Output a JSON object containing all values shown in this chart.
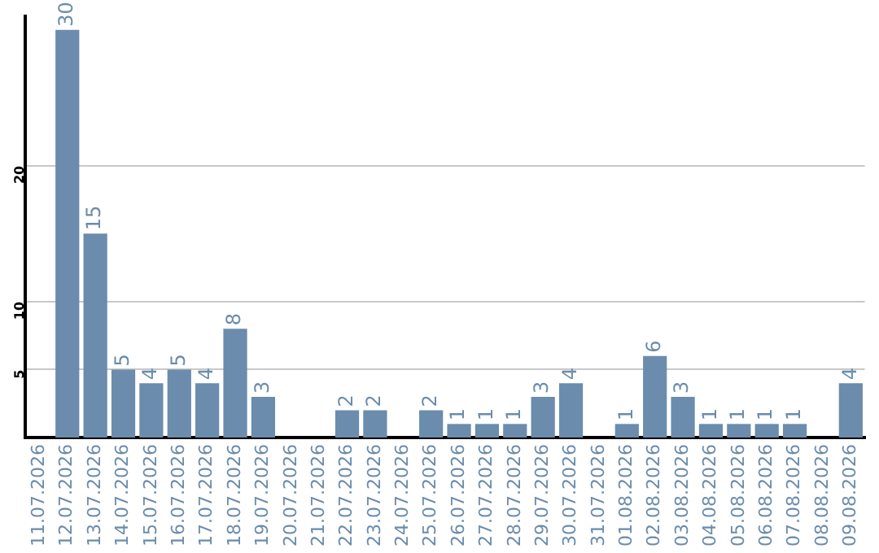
{
  "chart_data": {
    "type": "bar",
    "categories": [
      "11.07.2026",
      "12.07.2026",
      "13.07.2026",
      "14.07.2026",
      "15.07.2026",
      "16.07.2026",
      "17.07.2026",
      "18.07.2026",
      "19.07.2026",
      "20.07.2026",
      "21.07.2026",
      "22.07.2026",
      "23.07.2026",
      "24.07.2026",
      "25.07.2026",
      "26.07.2026",
      "27.07.2026",
      "28.07.2026",
      "29.07.2026",
      "30.07.2026",
      "31.07.2026",
      "01.08.2026",
      "02.08.2026",
      "03.08.2026",
      "04.08.2026",
      "05.08.2026",
      "06.08.2026",
      "07.08.2026",
      "08.08.2026",
      "09.08.2026"
    ],
    "values": [
      null,
      30,
      15,
      5,
      4,
      5,
      4,
      8,
      3,
      null,
      null,
      2,
      2,
      null,
      2,
      1,
      1,
      1,
      3,
      4,
      null,
      1,
      6,
      3,
      1,
      1,
      1,
      1,
      null,
      4
    ],
    "color": "#6b8cac",
    "ylim": [
      0,
      31
    ],
    "yticks": [
      5,
      10,
      20
    ],
    "grid": "y",
    "data_labels": true
  }
}
